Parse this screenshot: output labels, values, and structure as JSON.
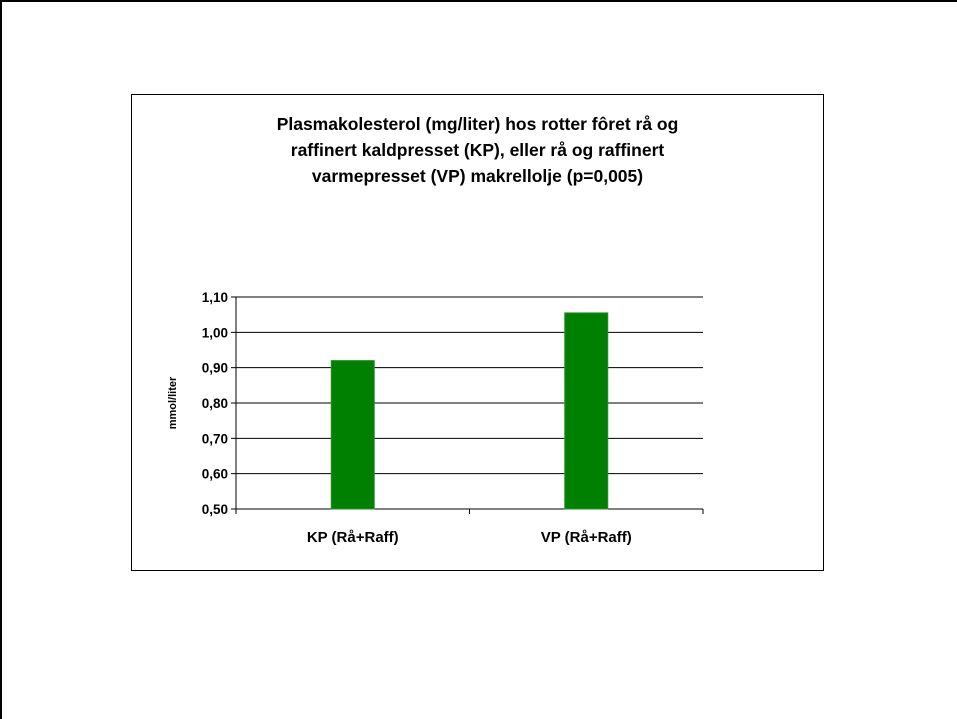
{
  "chart_data": {
    "type": "bar",
    "title": "Plasmakolesterol (mg/liter) hos rotter fôret rå og\nraffinert kaldpresset (KP), eller rå og raffinert\nvarmepresset (VP) makrellolje (p=0,005)",
    "categories": [
      "KP (Rå+Raff)",
      "VP (Rå+Raff)"
    ],
    "values": [
      0.92,
      1.055
    ],
    "xlabel": "",
    "ylabel": "mmol/liter",
    "ylim": [
      0.5,
      1.1
    ],
    "yticks": [
      0.5,
      0.6,
      0.7,
      0.8,
      0.9,
      1.0,
      1.1
    ],
    "ytick_labels": [
      "0,50",
      "0,60",
      "0,70",
      "0,80",
      "0,90",
      "1,00",
      "1,10"
    ],
    "grid": true,
    "legend": "none",
    "bar_color": "#008000",
    "bar_border_color": "#2e8b2e"
  }
}
